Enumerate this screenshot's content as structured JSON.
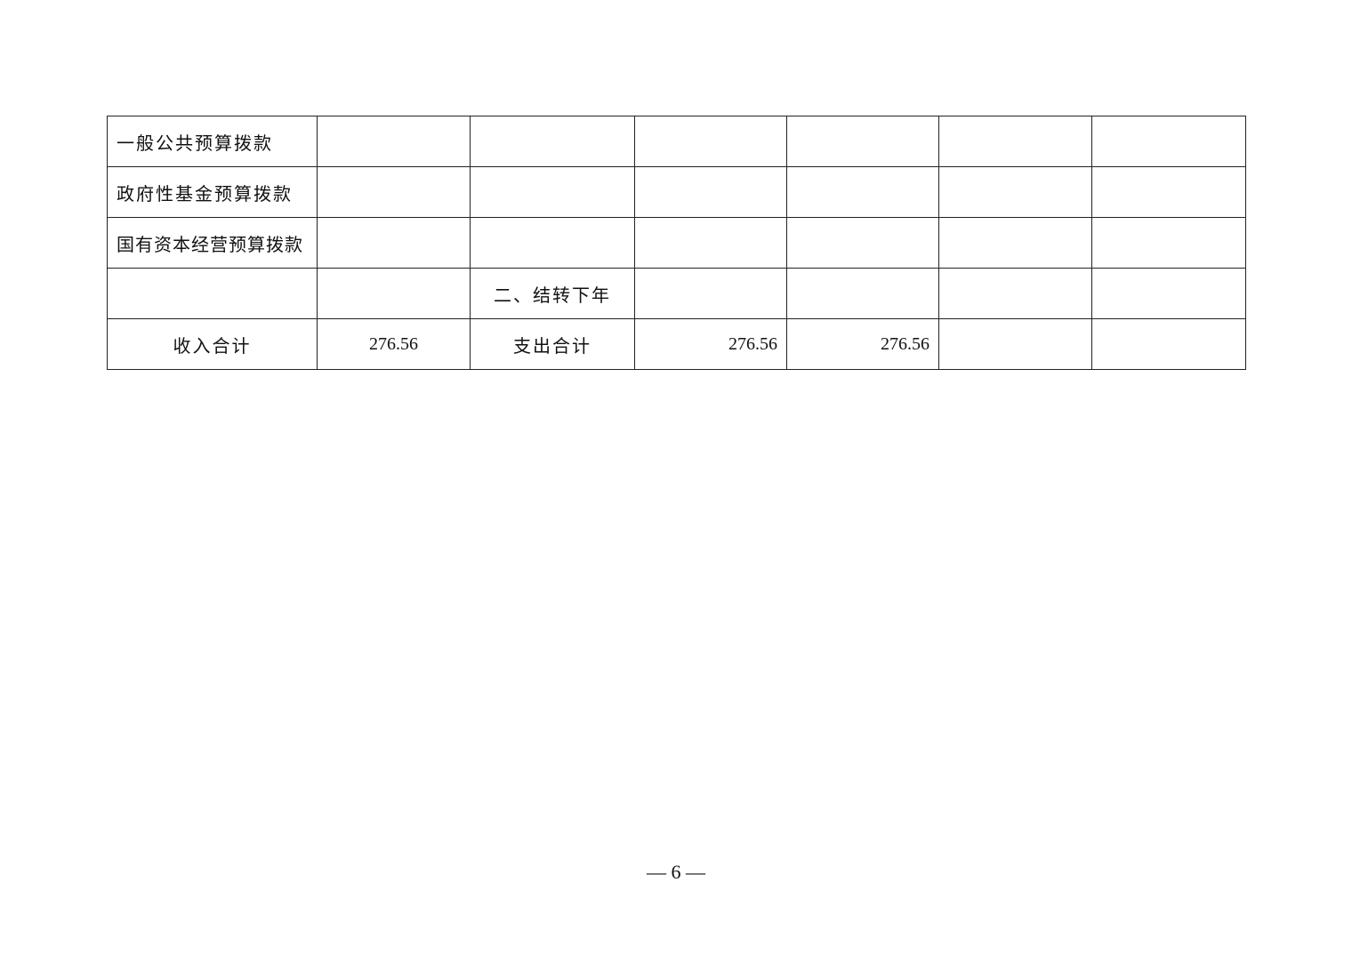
{
  "table": {
    "rows": [
      [
        "一般公共预算拨款",
        "",
        "",
        "",
        "",
        "",
        ""
      ],
      [
        "政府性基金预算拨款",
        "",
        "",
        "",
        "",
        "",
        ""
      ],
      [
        "国有资本经营预算拨款",
        "",
        "",
        "",
        "",
        "",
        ""
      ],
      [
        "",
        "",
        "二、结转下年",
        "",
        "",
        "",
        ""
      ],
      [
        "收入合计",
        "276.56",
        "支出合计",
        "276.56",
        "276.56",
        "",
        ""
      ]
    ]
  },
  "footer": {
    "page_number": "— 6 —"
  }
}
